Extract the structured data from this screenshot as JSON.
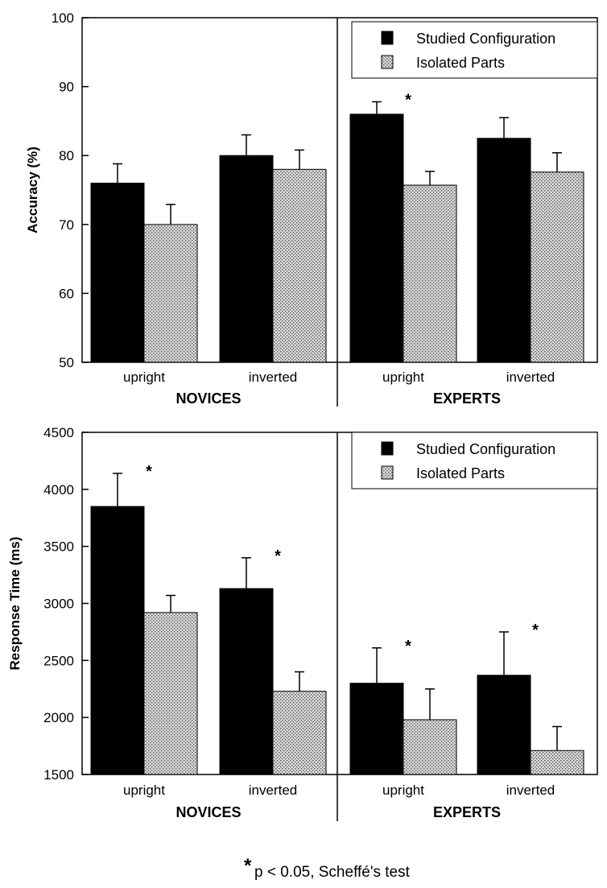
{
  "chart_data": [
    {
      "type": "bar",
      "ylabel": "Accuracy (%)",
      "ylim": [
        50,
        100
      ],
      "yticks": [
        50,
        60,
        70,
        80,
        90,
        100
      ],
      "groups": [
        "NOVICES",
        "EXPERTS"
      ],
      "categories": [
        "upright",
        "inverted",
        "upright",
        "inverted"
      ],
      "series": [
        {
          "name": "Studied Configuration",
          "values": [
            76,
            80,
            86,
            82.5
          ],
          "errors": [
            2.8,
            3,
            1.8,
            3
          ]
        },
        {
          "name": "Isolated Parts",
          "values": [
            70,
            78,
            75.7,
            77.6
          ],
          "errors": [
            2.9,
            2.8,
            2,
            2.8
          ]
        }
      ],
      "legend": "top-right",
      "significance": [
        {
          "group": "EXPERTS",
          "category": "upright",
          "label": "*"
        }
      ]
    },
    {
      "type": "bar",
      "ylabel": "Response Time (ms)",
      "ylim": [
        1500,
        4500
      ],
      "yticks": [
        1500,
        2000,
        2500,
        3000,
        3500,
        4000,
        4500
      ],
      "groups": [
        "NOVICES",
        "EXPERTS"
      ],
      "categories": [
        "upright",
        "inverted",
        "upright",
        "inverted"
      ],
      "series": [
        {
          "name": "Studied Configuration",
          "values": [
            3850,
            3130,
            2300,
            2370
          ],
          "errors": [
            290,
            270,
            310,
            380
          ]
        },
        {
          "name": "Isolated Parts",
          "values": [
            2920,
            2230,
            1980,
            1710
          ],
          "errors": [
            150,
            170,
            270,
            210
          ]
        }
      ],
      "legend": "top-right",
      "significance": [
        {
          "group": "NOVICES",
          "category": "upright",
          "label": "*"
        },
        {
          "group": "NOVICES",
          "category": "inverted",
          "label": "*"
        },
        {
          "group": "EXPERTS",
          "category": "upright",
          "label": "*"
        },
        {
          "group": "EXPERTS",
          "category": "inverted",
          "label": "*"
        }
      ]
    }
  ],
  "footnote": {
    "star": "*",
    "text": "p < 0.05, Scheffé's test"
  }
}
